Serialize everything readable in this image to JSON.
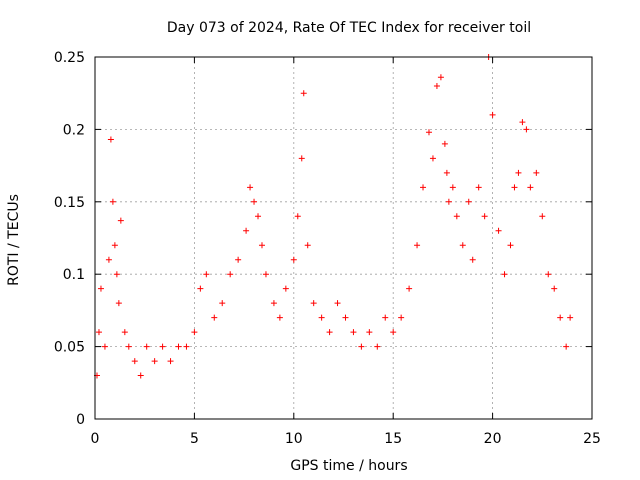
{
  "chart_data": {
    "type": "scatter",
    "title": "Day 073 of 2024, Rate Of TEC Index for receiver toil",
    "xlabel": "GPS time / hours",
    "ylabel": "ROTI / TECUs",
    "xlim": [
      0,
      25
    ],
    "ylim": [
      0,
      0.25
    ],
    "xticks": [
      0,
      5,
      10,
      15,
      20,
      25
    ],
    "xtick_labels": [
      "0",
      "5",
      "10",
      "15",
      "20",
      "25"
    ],
    "yticks": [
      0,
      0.05,
      0.1,
      0.15,
      0.2,
      0.25
    ],
    "ytick_labels": [
      "0",
      "0.05",
      "0.1",
      "0.15",
      "0.2",
      "0.25"
    ],
    "grid": true,
    "marker": "+",
    "series": [
      {
        "name": "ROTI",
        "color": "#ff0000",
        "x": [
          0.1,
          0.2,
          0.3,
          0.5,
          0.7,
          0.8,
          0.9,
          1.0,
          1.1,
          1.2,
          1.3,
          1.5,
          1.7,
          2.0,
          2.3,
          2.6,
          3.0,
          3.4,
          3.8,
          4.2,
          4.6,
          5.0,
          5.3,
          5.6,
          6.0,
          6.4,
          6.8,
          7.2,
          7.6,
          7.8,
          8.0,
          8.2,
          8.4,
          8.6,
          9.0,
          9.3,
          9.6,
          10.0,
          10.2,
          10.4,
          10.5,
          10.7,
          11.0,
          11.4,
          11.8,
          12.2,
          12.6,
          13.0,
          13.4,
          13.8,
          14.2,
          14.6,
          15.0,
          15.4,
          15.8,
          16.2,
          16.5,
          16.8,
          17.0,
          17.2,
          17.4,
          17.6,
          17.7,
          17.8,
          18.0,
          18.2,
          18.5,
          18.8,
          19.0,
          19.3,
          19.6,
          19.8,
          20.0,
          20.3,
          20.6,
          20.9,
          21.1,
          21.3,
          21.5,
          21.7,
          21.9,
          22.2,
          22.5,
          22.8,
          23.1,
          23.4,
          23.7,
          23.9
        ],
        "y": [
          0.03,
          0.06,
          0.09,
          0.05,
          0.11,
          0.193,
          0.15,
          0.12,
          0.1,
          0.08,
          0.137,
          0.06,
          0.05,
          0.04,
          0.03,
          0.05,
          0.04,
          0.05,
          0.04,
          0.05,
          0.05,
          0.06,
          0.09,
          0.1,
          0.07,
          0.08,
          0.1,
          0.11,
          0.13,
          0.16,
          0.15,
          0.14,
          0.12,
          0.1,
          0.08,
          0.07,
          0.09,
          0.11,
          0.14,
          0.18,
          0.225,
          0.12,
          0.08,
          0.07,
          0.06,
          0.08,
          0.07,
          0.06,
          0.05,
          0.06,
          0.05,
          0.07,
          0.06,
          0.07,
          0.09,
          0.12,
          0.16,
          0.198,
          0.18,
          0.23,
          0.236,
          0.19,
          0.17,
          0.15,
          0.16,
          0.14,
          0.12,
          0.15,
          0.11,
          0.16,
          0.14,
          0.25,
          0.21,
          0.13,
          0.1,
          0.12,
          0.16,
          0.17,
          0.205,
          0.2,
          0.16,
          0.17,
          0.14,
          0.1,
          0.09,
          0.07,
          0.05,
          0.07
        ]
      }
    ]
  }
}
